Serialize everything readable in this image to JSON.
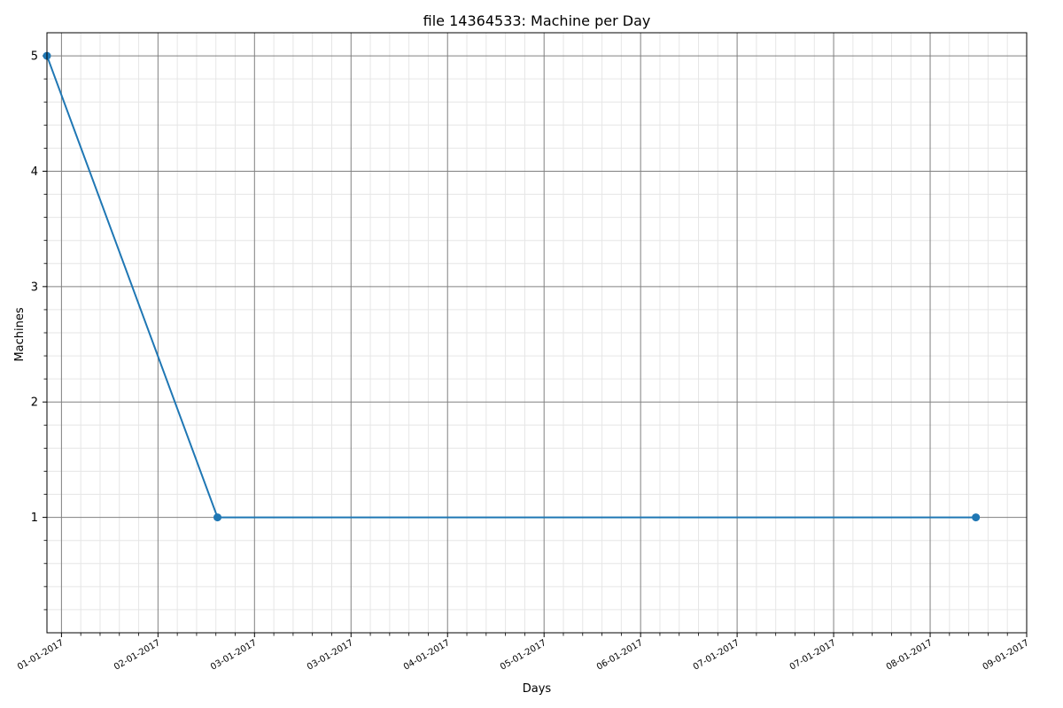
{
  "chart_data": {
    "type": "line",
    "title": "file 14364533: Machine per Day",
    "xlabel": "Days",
    "ylabel": "Machines",
    "x_tick_labels": [
      "01-01-2017",
      "02-01-2017",
      "03-01-2017",
      "03-01-2017",
      "04-01-2017",
      "05-01-2017",
      "06-01-2017",
      "07-01-2017",
      "07-01-2017",
      "08-01-2017",
      "09-01-2017"
    ],
    "y_ticks": [
      1,
      2,
      3,
      4,
      5
    ],
    "ylim": [
      0,
      5.2
    ],
    "grid": true,
    "series": [
      {
        "color": "#1f77b4",
        "points": [
          {
            "x": "2016-12-03",
            "y": 5
          },
          {
            "x": "2017-01-19",
            "y": 1
          },
          {
            "x": "2017-08-16",
            "y": 1
          }
        ]
      }
    ]
  }
}
